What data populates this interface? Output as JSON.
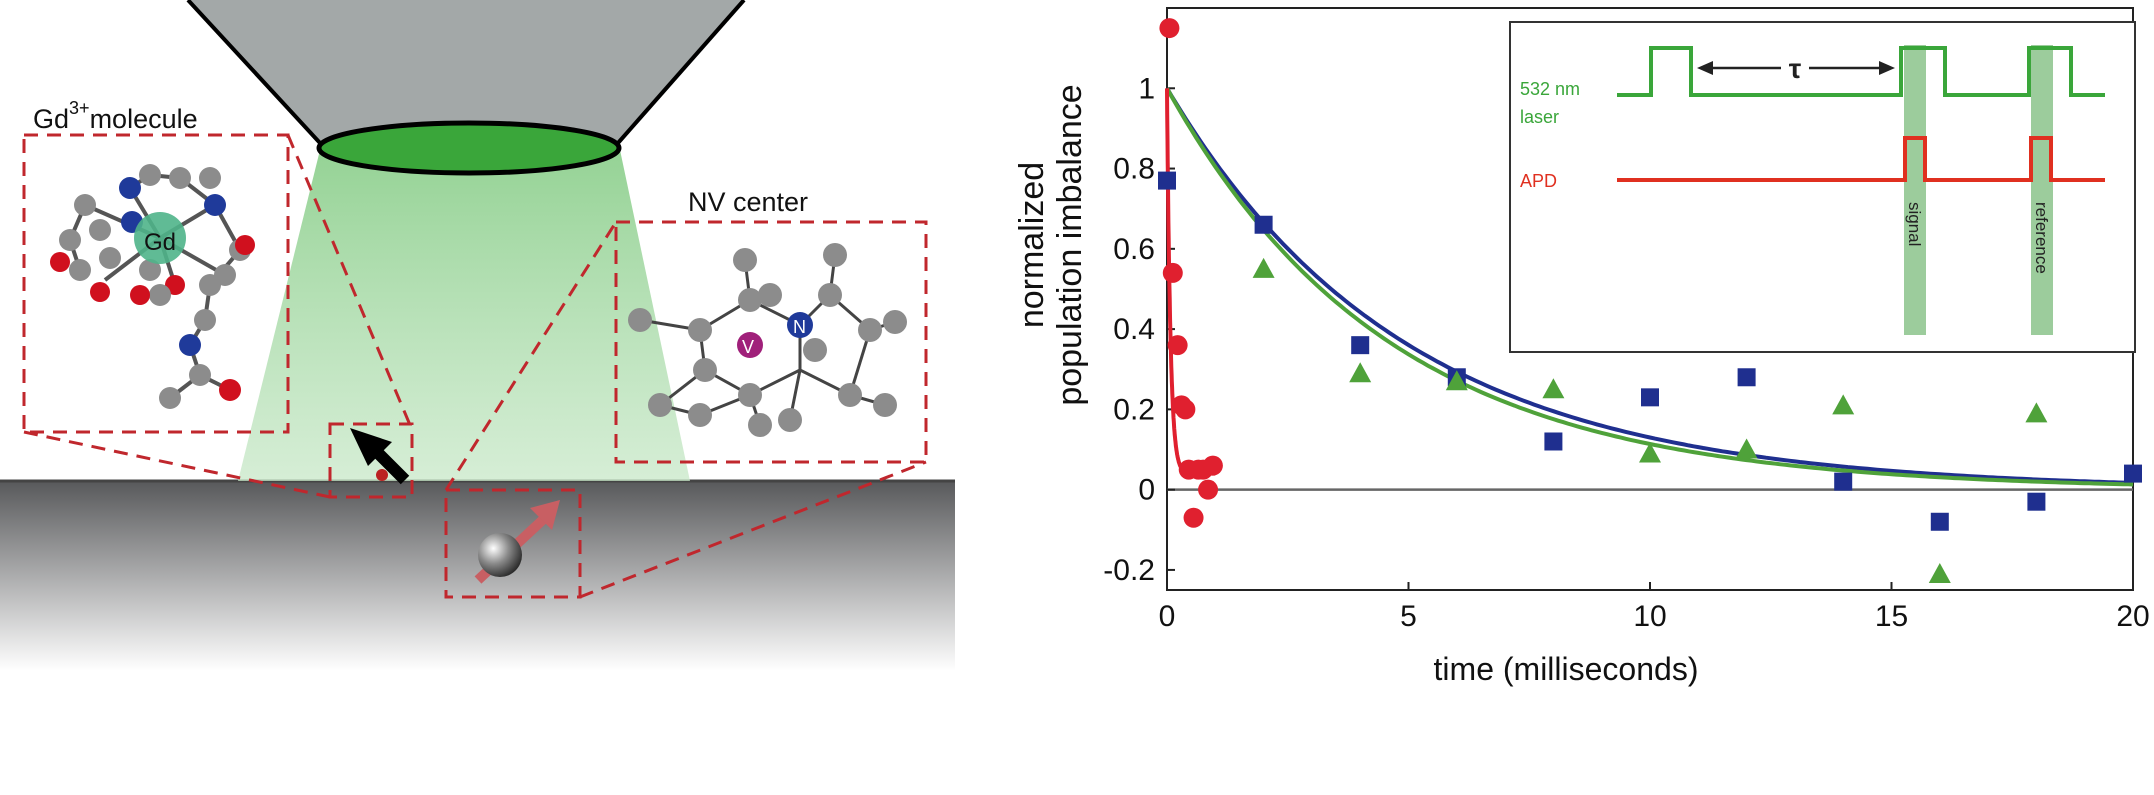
{
  "scene": {
    "gd_label_element": "Gd",
    "gd_label_charge": "3+",
    "gd_label_word": "molecule",
    "gd_atom_label": "Gd",
    "nv_label": "NV center",
    "nv_atom_V": "V",
    "nv_atom_N": "N",
    "colors": {
      "cone": "#a3a8a8",
      "laser_spot": "#3aa63a",
      "beam": "#8fd08f",
      "surface_top": "#5f6062",
      "dashed_box": "#c0272d",
      "gd_atom": "#4fb48a",
      "carbon": "#8c8c8c",
      "nitrogen": "#1f3a9a",
      "oxygen": "#d0101e",
      "vacancy": "#a0207a"
    },
    "icons": [
      "nv-spin-icon",
      "gd-spin-arrow-icon"
    ]
  },
  "chart_data": {
    "type": "scatter",
    "ylabel_line1": "normalized",
    "ylabel_line2": "population imbalance",
    "xlabel": "time (milliseconds)",
    "xlim": [
      0,
      20
    ],
    "ylim": [
      -0.25,
      1.2
    ],
    "xticks": [
      0,
      5,
      10,
      15,
      20
    ],
    "xtick_labels": [
      "0",
      "5",
      "10",
      "15",
      "20"
    ],
    "yticks": [
      -0.2,
      0,
      0.2,
      0.4,
      0.6,
      0.8,
      1
    ],
    "ytick_labels": [
      "-0.2",
      "0",
      "0.2",
      "0.4",
      "0.6",
      "0.8",
      "1"
    ],
    "series": [
      {
        "color": "#1f2f8f",
        "marker": "square",
        "x": [
          0,
          2,
          4,
          6,
          8,
          10,
          12,
          14,
          16,
          18,
          20
        ],
        "y": [
          0.77,
          0.66,
          0.36,
          0.28,
          0.12,
          0.23,
          0.28,
          0.02,
          -0.08,
          -0.03,
          0.04
        ]
      },
      {
        "color": "#4fa23a",
        "marker": "triangle",
        "x": [
          2,
          4,
          6,
          8,
          10,
          12,
          14,
          16,
          18
        ],
        "y": [
          0.55,
          0.29,
          0.27,
          0.25,
          0.09,
          0.1,
          0.21,
          -0.21,
          0.19
        ]
      },
      {
        "color": "#e0202f",
        "marker": "circle",
        "x": [
          0.05,
          0.12,
          0.22,
          0.3,
          0.38,
          0.45,
          0.55,
          0.65,
          0.75,
          0.85,
          0.95
        ],
        "y": [
          1.15,
          0.54,
          0.36,
          0.21,
          0.2,
          0.05,
          -0.07,
          0.05,
          0.05,
          0.0,
          0.06
        ]
      }
    ],
    "fits": [
      {
        "color": "#1f2f8f",
        "amplitude": 1.0,
        "tau_ms": 4.9
      },
      {
        "color": "#4fa23a",
        "amplitude": 1.0,
        "tau_ms": 4.6
      },
      {
        "color": "#e0202f",
        "amplitude": 1.0,
        "tau_ms": 0.07,
        "offset": 0.04
      }
    ],
    "inset": {
      "laser_label_1": "532 nm",
      "laser_label_2": "laser",
      "apd_label": "APD",
      "tau_label": "τ",
      "signal_label": "signal",
      "reference_label": "reference",
      "laser_color": "#3aa63a",
      "apd_color": "#e03020",
      "window_color": "#9ccc9c"
    }
  }
}
